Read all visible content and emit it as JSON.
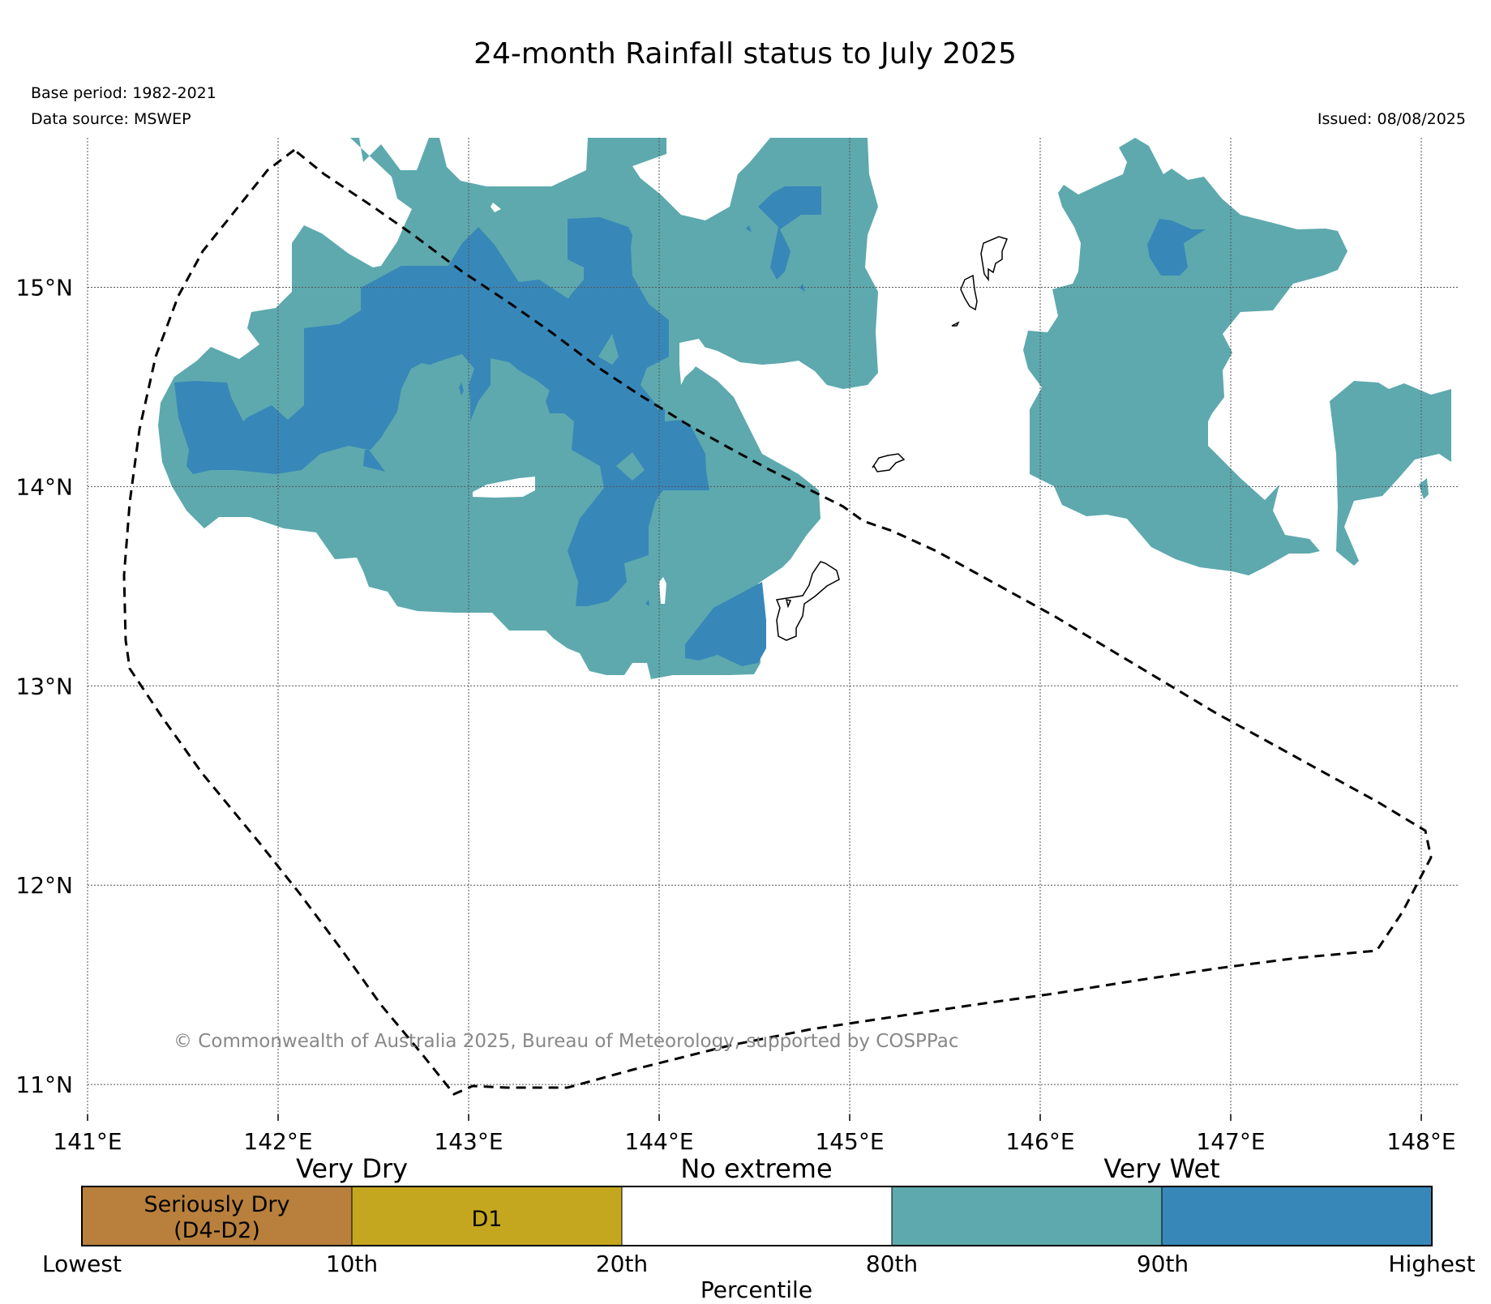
{
  "title": "24-month Rainfall status to July 2025",
  "base_period": "Base period: 1982-2021",
  "data_source": "Data source: MSWEP",
  "issued": "Issued: 08/08/2025",
  "copyright": "© Commonwealth of Australia 2025, Bureau of Meteorology, supported by COSPPac",
  "map": {
    "lon_range": [
      141,
      148.2
    ],
    "lat_range": [
      10.85,
      15.75
    ],
    "lon_ticks": [
      {
        "value": 141,
        "label": "141°E"
      },
      {
        "value": 142,
        "label": "142°E"
      },
      {
        "value": 143,
        "label": "143°E"
      },
      {
        "value": 144,
        "label": "144°E"
      },
      {
        "value": 145,
        "label": "145°E"
      },
      {
        "value": 146,
        "label": "146°E"
      },
      {
        "value": 147,
        "label": "147°E"
      },
      {
        "value": 148,
        "label": "148°E"
      }
    ],
    "lat_ticks": [
      {
        "value": 15,
        "label": "15°N"
      },
      {
        "value": 14,
        "label": "14°N"
      },
      {
        "value": 13,
        "label": "13°N"
      },
      {
        "value": 12,
        "label": "12°N"
      },
      {
        "value": 11,
        "label": "11°N"
      }
    ],
    "gridlines": true
  },
  "legend": {
    "groups": [
      "Very Dry",
      "No extreme",
      "Very Wet"
    ],
    "categories": [
      {
        "label_line1": "Seriously Dry",
        "label_line2": "(D4-D2)",
        "color": "#b8803c"
      },
      {
        "label_line1": "D1",
        "label_line2": "",
        "color": "#c4a71f"
      },
      {
        "label_line1": "",
        "label_line2": "",
        "color": "#ffffff"
      },
      {
        "label_line1": "",
        "label_line2": "",
        "color": "#5da9ae"
      },
      {
        "label_line1": "",
        "label_line2": "",
        "color": "#3887b9"
      }
    ],
    "ticks": [
      "Lowest",
      "10th",
      "20th",
      "80th",
      "90th",
      "Highest"
    ],
    "xlabel": "Percentile"
  },
  "colors": {
    "very_wet_80_90": "#5da9ae",
    "very_wet_90_highest": "#3887b9",
    "boundary": "#000000",
    "copyright_text": "#888888"
  }
}
